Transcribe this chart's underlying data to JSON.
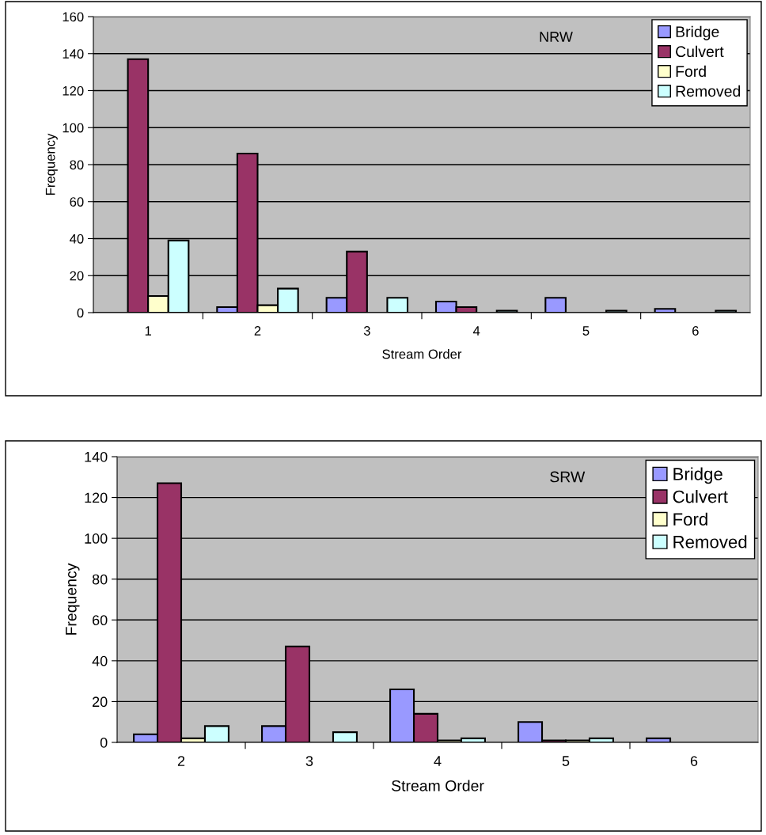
{
  "chart_data": [
    {
      "type": "bar",
      "xlabel": "Stream Order",
      "ylabel": "Frequency",
      "annotations": [
        "NRW"
      ],
      "categories": [
        "1",
        "2",
        "3",
        "4",
        "5",
        "6"
      ],
      "ylim": [
        0,
        160
      ],
      "yticks": [
        0,
        20,
        40,
        60,
        80,
        100,
        120,
        140,
        160
      ],
      "grid": "y",
      "legend": "top right",
      "series": [
        {
          "name": "Bridge",
          "color": "#9999ff",
          "values": [
            0,
            3,
            8,
            6,
            8,
            2
          ]
        },
        {
          "name": "Culvert",
          "color": "#993366",
          "values": [
            137,
            86,
            33,
            3,
            0,
            0
          ]
        },
        {
          "name": "Ford",
          "color": "#ffffcc",
          "values": [
            9,
            4,
            0,
            0,
            0,
            0
          ]
        },
        {
          "name": "Removed",
          "color": "#ccffff",
          "values": [
            39,
            13,
            8,
            1,
            1,
            1
          ]
        }
      ]
    },
    {
      "type": "bar",
      "xlabel": "Stream Order",
      "ylabel": "Frequency",
      "annotations": [
        "SRW"
      ],
      "categories": [
        "2",
        "3",
        "4",
        "5",
        "6"
      ],
      "ylim": [
        0,
        140
      ],
      "yticks": [
        0,
        20,
        40,
        60,
        80,
        100,
        120,
        140
      ],
      "grid": "y",
      "legend": "top right",
      "series": [
        {
          "name": "Bridge",
          "color": "#9999ff",
          "values": [
            4,
            8,
            26,
            10,
            2
          ]
        },
        {
          "name": "Culvert",
          "color": "#993366",
          "values": [
            127,
            47,
            14,
            1,
            0
          ]
        },
        {
          "name": "Ford",
          "color": "#ffffcc",
          "values": [
            2,
            0,
            1,
            1,
            0
          ]
        },
        {
          "name": "Removed",
          "color": "#ccffff",
          "values": [
            8,
            5,
            2,
            2,
            0
          ]
        }
      ]
    }
  ]
}
